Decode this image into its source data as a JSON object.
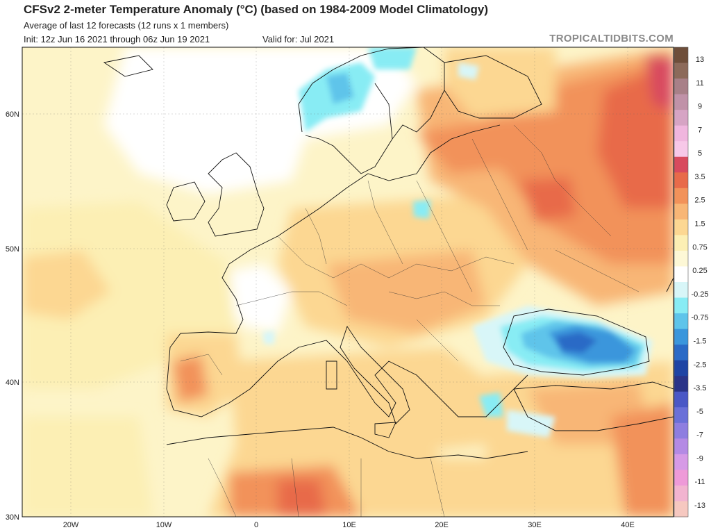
{
  "header": {
    "title": "CFSv2 2-meter Temperature Anomaly (°C) (based on 1984-2009 Model Climatology)",
    "subtitle": "Average of last 12 forecasts (12 runs x 1 members)",
    "init": "Init: 12z Jun 16 2021 through 06z Jun 19 2021",
    "valid": "Valid for: Jul 2021",
    "brand": "TROPICALTIDBITS.COM"
  },
  "map": {
    "region": "Europe",
    "lon_labels": [
      "20W",
      "10W",
      "0",
      "10E",
      "20E",
      "30E",
      "40E"
    ],
    "lat_labels": [
      "60N",
      "50N",
      "40N",
      "30N"
    ]
  },
  "colorbar": {
    "labels": [
      "13",
      "11",
      "9",
      "7",
      "5",
      "3.5",
      "2.5",
      "1.5",
      "0.75",
      "0.25",
      "-0.25",
      "-0.75",
      "-1.5",
      "-2.5",
      "-3.5",
      "-5",
      "-7",
      "-9",
      "-11",
      "-13"
    ],
    "colors": [
      "#6e4e3a",
      "#8c6a5a",
      "#a88088",
      "#c092a8",
      "#d6a4c4",
      "#f0b6de",
      "#f7c8e8",
      "#d84a5e",
      "#e86a4a",
      "#f2925a",
      "#f8b676",
      "#fcd792",
      "#fcefb4",
      "#fdf8d6",
      "#ffffff",
      "#d8f6f8",
      "#88ecf4",
      "#5ec4ea",
      "#3a96dc",
      "#2a6ac6",
      "#1e44a4",
      "#2a3488",
      "#4a58c6",
      "#6a70d8",
      "#8e7ee0",
      "#b48ae4",
      "#d69ae6",
      "#ee9ad8",
      "#f2b4d0",
      "#f6c8c0"
    ]
  }
}
